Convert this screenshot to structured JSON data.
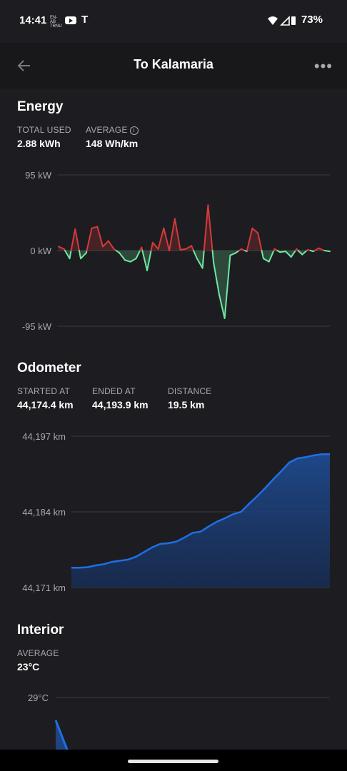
{
  "status": {
    "time": "14:41",
    "small_badge": "EN-AB TRNU",
    "battery": "73%"
  },
  "header": {
    "title": "To Kalamaria",
    "back_icon": "arrow-left-icon",
    "more_icon": "more-horizontal-icon"
  },
  "energy": {
    "title": "Energy",
    "total_used_label": "TOTAL USED",
    "total_used_value": "2.88 kWh",
    "average_label": "AVERAGE",
    "average_value": "148 Wh/km"
  },
  "odometer": {
    "title": "Odometer",
    "started_label": "STARTED AT",
    "started_value": "44,174.4 km",
    "ended_label": "ENDED AT",
    "ended_value": "44,193.9 km",
    "distance_label": "DISTANCE",
    "distance_value": "19.5 km"
  },
  "interior": {
    "title": "Interior",
    "average_label": "AVERAGE",
    "average_value": "23°C"
  },
  "chart_data": [
    {
      "type": "line",
      "ylim": [
        -95,
        95
      ],
      "yticks": [
        "95 kW",
        "0 kW",
        "-95 kW"
      ],
      "colors": {
        "positive": "#d63a3a",
        "negative": "#6ee8a0"
      },
      "values": [
        5,
        2,
        -10,
        27,
        -10,
        -3,
        28,
        30,
        5,
        12,
        2,
        -3,
        -12,
        -14,
        -10,
        4,
        -25,
        10,
        2,
        28,
        0,
        40,
        1,
        2,
        6,
        -10,
        -22,
        57,
        -15,
        -55,
        -85,
        -6,
        -3,
        2,
        -1,
        28,
        22,
        -10,
        -14,
        2,
        -2,
        -1,
        -8,
        2,
        -5,
        1,
        -1,
        3,
        0,
        -1
      ],
      "negative_colors": "#6ee8a0"
    },
    {
      "type": "area",
      "ylim": [
        44171,
        44197
      ],
      "yticks": [
        "44,197 km",
        "44,184 km",
        "44,171 km"
      ],
      "color": "#1f6fe5",
      "values": [
        44174.4,
        44174.4,
        44174.5,
        44174.8,
        44175.0,
        44175.4,
        44175.6,
        44175.8,
        44176.3,
        44177.1,
        44177.9,
        44178.5,
        44178.6,
        44178.9,
        44179.6,
        44180.4,
        44180.6,
        44181.5,
        44182.3,
        44182.9,
        44183.6,
        44184.0,
        44185.4,
        44186.7,
        44188.1,
        44189.6,
        44191.0,
        44192.5,
        44193.2,
        44193.4,
        44193.7,
        44193.9,
        44193.9
      ]
    },
    {
      "type": "area",
      "yticks": [
        "29°C"
      ],
      "color": "#1f6fe5"
    }
  ]
}
